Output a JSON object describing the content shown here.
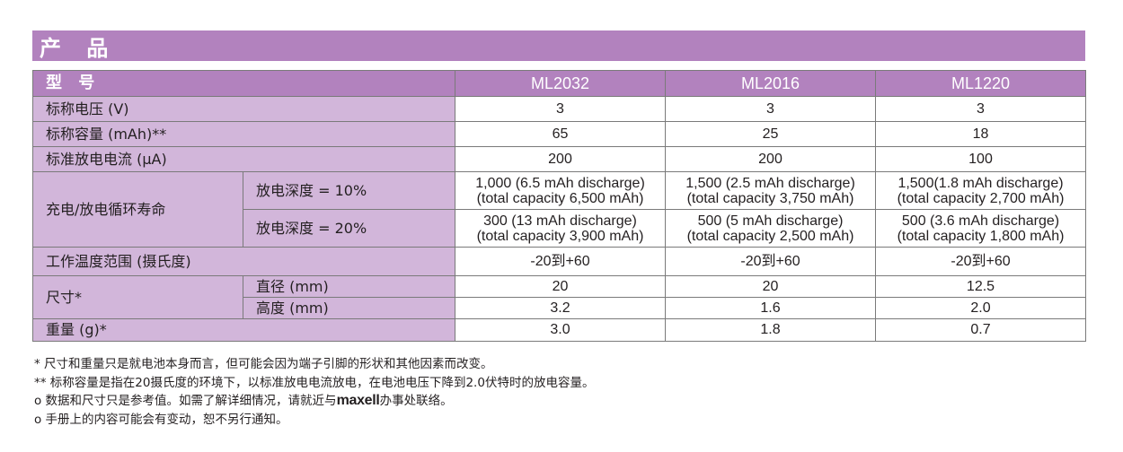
{
  "title": "产 品",
  "columns": [
    "ML2032",
    "ML2016",
    "ML1220"
  ],
  "header_label": "型 号",
  "rows": {
    "nominal_voltage": {
      "label": "标称电压 (V)",
      "values": [
        "3",
        "3",
        "3"
      ]
    },
    "nominal_capacity": {
      "label": "标称容量 (mAh)**",
      "values": [
        "65",
        "25",
        "18"
      ]
    },
    "standard_current": {
      "label": "标准放电电流 (μA)",
      "values": [
        "200",
        "200",
        "100"
      ]
    },
    "cycle_life": {
      "label": "充电/放电循环寿命",
      "dod10": {
        "label": "放电深度 = 10%",
        "values": [
          {
            "line1": "1,000 (6.5 mAh discharge)",
            "line2": "(total capacity 6,500 mAh)"
          },
          {
            "line1": "1,500 (2.5 mAh discharge)",
            "line2": "(total capacity 3,750 mAh)"
          },
          {
            "line1": "1,500(1.8 mAh discharge)",
            "line2": "(total capacity 2,700 mAh)"
          }
        ]
      },
      "dod20": {
        "label": "放电深度 = 20%",
        "values": [
          {
            "line1": "300 (13 mAh discharge)",
            "line2": "(total capacity 3,900 mAh)"
          },
          {
            "line1": "500 (5 mAh discharge)",
            "line2": "(total capacity 2,500 mAh)"
          },
          {
            "line1": "500 (3.6 mAh discharge)",
            "line2": "(total capacity 1,800 mAh)"
          }
        ]
      }
    },
    "temperature_range": {
      "label": "工作温度范围 (摄氏度)",
      "values": [
        "-20到+60",
        "-20到+60",
        "-20到+60"
      ]
    },
    "dimensions": {
      "label": "尺寸*",
      "diameter": {
        "label": "直径 (mm)",
        "values": [
          "20",
          "20",
          "12.5"
        ]
      },
      "height": {
        "label": "高度 (mm)",
        "values": [
          "3.2",
          "1.6",
          "2.0"
        ]
      }
    },
    "weight": {
      "label": "重量 (g)*",
      "values": [
        "3.0",
        "1.8",
        "0.7"
      ]
    }
  },
  "notes": {
    "note1": "*  尺寸和重量只是就电池本身而言，但可能会因为端子引脚的形状和其他因素而改变。",
    "note2": "**  标称容量是指在20摄氏度的环境下，以标准放电电流放电，在电池电压下降到2.0伏特时的放电容量。",
    "note3_before": "o  数据和尺寸只是参考值。如需了解详细情况，请就近与",
    "note3_brand": "maxell",
    "note3_after": "办事处联络。",
    "note4": "o  手册上的内容可能会有变动，恕不另行通知。"
  },
  "colors": {
    "header_purple": "#b282be",
    "label_lavender": "#d2b6da"
  }
}
